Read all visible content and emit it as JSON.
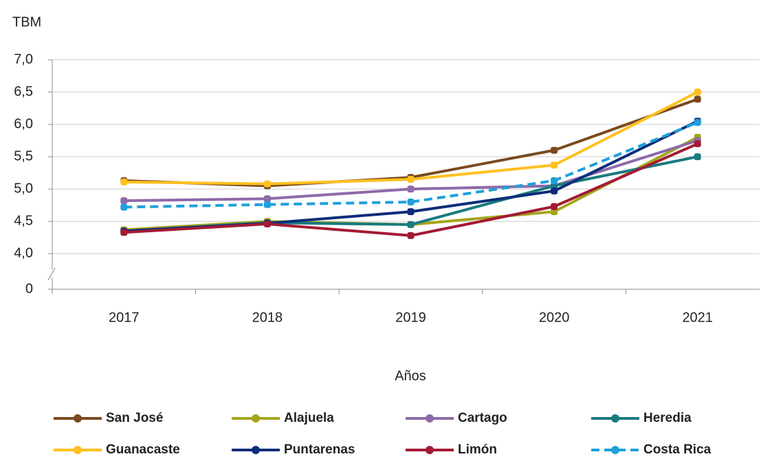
{
  "chart_data": {
    "type": "line",
    "title": "TBM",
    "x_label": "Años",
    "categories": [
      "2017",
      "2018",
      "2019",
      "2020",
      "2021"
    ],
    "series": [
      {
        "name": "San José",
        "color": "#7b4a1e",
        "values": [
          5.13,
          5.05,
          5.18,
          5.6,
          6.39
        ]
      },
      {
        "name": "Alajuela",
        "color": "#a5a51a",
        "values": [
          4.37,
          4.5,
          4.45,
          4.65,
          5.8
        ]
      },
      {
        "name": "Cartago",
        "color": "#8e6aa8",
        "values": [
          4.82,
          4.85,
          5.0,
          5.05,
          5.75
        ]
      },
      {
        "name": "Heredia",
        "color": "#1a7a80",
        "values": [
          4.35,
          4.48,
          4.45,
          5.05,
          5.5
        ]
      },
      {
        "name": "Guanacaste",
        "color": "#ffc020",
        "values": [
          5.11,
          5.08,
          5.15,
          5.37,
          6.5
        ]
      },
      {
        "name": "Puntarenas",
        "color": "#0d2d7a",
        "values": [
          4.35,
          4.47,
          4.65,
          4.97,
          6.05
        ]
      },
      {
        "name": "Limón",
        "color": "#a31a35",
        "values": [
          4.33,
          4.46,
          4.28,
          4.73,
          5.7
        ]
      },
      {
        "name": "Costa Rica",
        "color": "#1ea0dc",
        "dashed": true,
        "values": [
          4.72,
          4.76,
          4.8,
          5.13,
          6.03
        ]
      }
    ],
    "ylim": [
      3.45,
      7
    ],
    "axis_break": true,
    "yticks": [
      0,
      {
        "value": 4,
        "label": "4,0"
      },
      {
        "value": 4.5,
        "label": "4,5"
      },
      {
        "value": 5,
        "label": "5,0"
      },
      {
        "value": 5.5,
        "label": "5,5"
      },
      {
        "value": 6,
        "label": "6,0"
      },
      {
        "value": 6.5,
        "label": "6,5"
      },
      {
        "value": 7,
        "label": "7,0"
      }
    ],
    "grid": true,
    "legend": "bottom"
  }
}
